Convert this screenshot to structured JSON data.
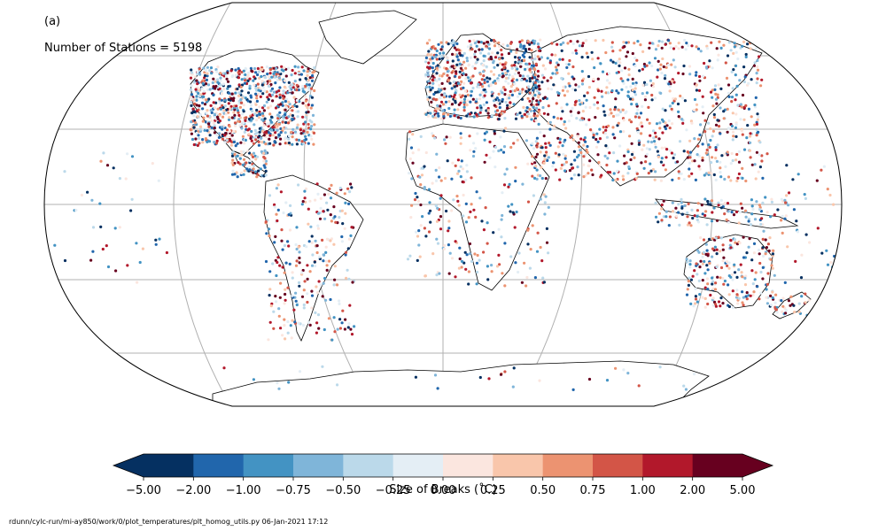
{
  "panel_label": "(a)",
  "station_count_text": "Number of Stations = 5198",
  "colorbar": {
    "ticks": [
      "−5.00",
      "−2.00",
      "−1.00",
      "−0.75",
      "−0.50",
      "−0.25",
      "0.00",
      "0.25",
      "0.50",
      "0.75",
      "1.00",
      "2.00",
      "5.00"
    ],
    "colors": [
      "#053061",
      "#2166ac",
      "#4393c3",
      "#7fb5d9",
      "#bbd9ea",
      "#e4eef5",
      "#fbe6df",
      "#f9c6ab",
      "#ec9371",
      "#d35547",
      "#b2182b",
      "#67001f"
    ],
    "extend_low_color": "#053061",
    "extend_high_color": "#67001f",
    "label": "Size of Breaks (˚C)"
  },
  "footer": "rdunn/cylc-run/mi-ay850/work/0/plot_temperatures/plt_homog_utils.py   06-Jan-2021 17:12",
  "map": {
    "projection": "Robinson (global)",
    "ocean_color": "#ffffff",
    "coastline_color": "#000000",
    "gridline_color": "#b0b0b0"
  }
}
